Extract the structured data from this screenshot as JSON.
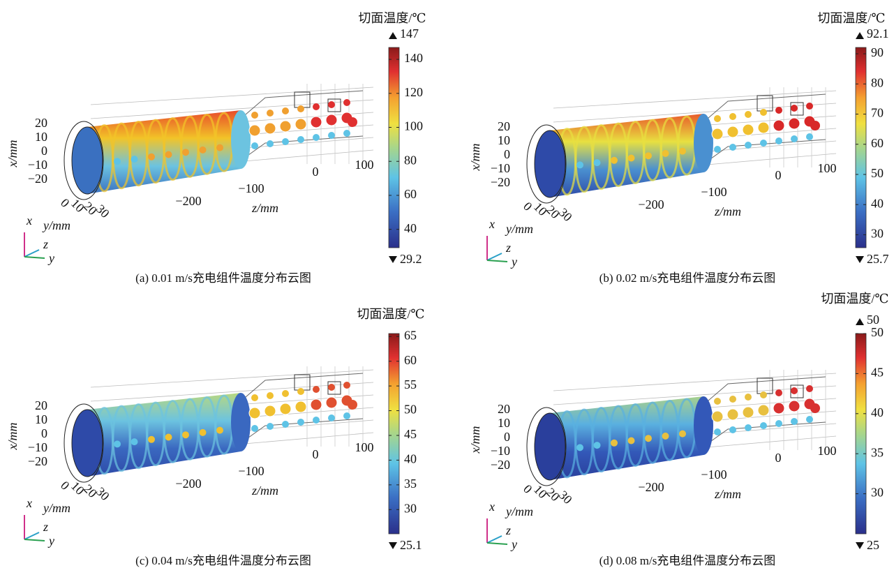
{
  "panels": [
    {
      "caption": "(a) 0.01 m/s充电组件温度分布云图",
      "colorbar": {
        "title": "切面温度/℃",
        "max": 147,
        "min": 29.2,
        "show_max": true,
        "ticks": [
          40,
          60,
          80,
          100,
          120,
          140
        ]
      },
      "axes": {
        "x_label": "x/mm",
        "y_label": "y/mm",
        "z_label": "z/mm",
        "x_ticks": [
          20,
          10,
          0,
          {
            "value": -10,
            "label": "−10"
          },
          {
            "value": -20,
            "label": "−20"
          }
        ],
        "y_ticks": [
          0,
          10,
          20,
          30
        ],
        "z_ticks": [
          {
            "value": -200,
            "label": "−200"
          },
          {
            "value": -100,
            "label": "−100"
          },
          0,
          100
        ]
      },
      "triad": [
        "x",
        "z",
        "y"
      ]
    },
    {
      "caption": "(b) 0.02 m/s充电组件温度分布云图",
      "colorbar": {
        "title": "切面温度/℃",
        "max": 92.1,
        "min": 25.7,
        "show_max": true,
        "ticks": [
          30,
          40,
          50,
          60,
          70,
          80,
          90
        ]
      },
      "axes": {
        "x_label": "x/mm",
        "y_label": "y/mm",
        "z_label": "z/mm",
        "x_ticks": [
          20,
          10,
          0,
          {
            "value": -10,
            "label": "−10"
          },
          {
            "value": -20,
            "label": "−20"
          }
        ],
        "y_ticks": [
          0,
          10,
          20,
          30
        ],
        "z_ticks": [
          {
            "value": -200,
            "label": "−200"
          },
          {
            "value": -100,
            "label": "−100"
          },
          0,
          100
        ]
      },
      "triad": [
        "x",
        "z",
        "y"
      ]
    },
    {
      "caption": "(c) 0.04 m/s充电组件温度分布云图",
      "colorbar": {
        "title": "切面温度/℃",
        "max": 65.6,
        "min": 25.1,
        "show_max": false,
        "ticks": [
          30,
          35,
          40,
          45,
          50,
          55,
          60,
          65
        ]
      },
      "axes": {
        "x_label": "x/mm",
        "y_label": "y/mm",
        "z_label": "z/mm",
        "x_ticks": [
          20,
          10,
          0,
          {
            "value": -10,
            "label": "−10"
          },
          {
            "value": -20,
            "label": "−20"
          }
        ],
        "y_ticks": [
          0,
          10,
          20,
          30
        ],
        "z_ticks": [
          {
            "value": -200,
            "label": "−200"
          },
          {
            "value": -100,
            "label": "−100"
          },
          0,
          100
        ]
      },
      "triad": [
        "x",
        "z",
        "y"
      ]
    },
    {
      "caption": "(d) 0.08 m/s充电组件温度分布云图",
      "colorbar": {
        "title": "切面温度/℃",
        "max": 50,
        "min": 25,
        "show_max": true,
        "ticks": [
          30,
          35,
          40,
          45,
          50
        ]
      },
      "axes": {
        "x_label": "x/mm",
        "y_label": "y/mm",
        "z_label": "z/mm",
        "x_ticks": [
          20,
          10,
          0,
          {
            "value": -10,
            "label": "−10"
          },
          {
            "value": -20,
            "label": "−20"
          }
        ],
        "y_ticks": [
          0,
          10,
          20,
          30
        ],
        "z_ticks": [
          {
            "value": -200,
            "label": "−200"
          },
          {
            "value": -100,
            "label": "−100"
          },
          0,
          100
        ]
      },
      "triad": [
        "x",
        "z",
        "y"
      ]
    }
  ]
}
